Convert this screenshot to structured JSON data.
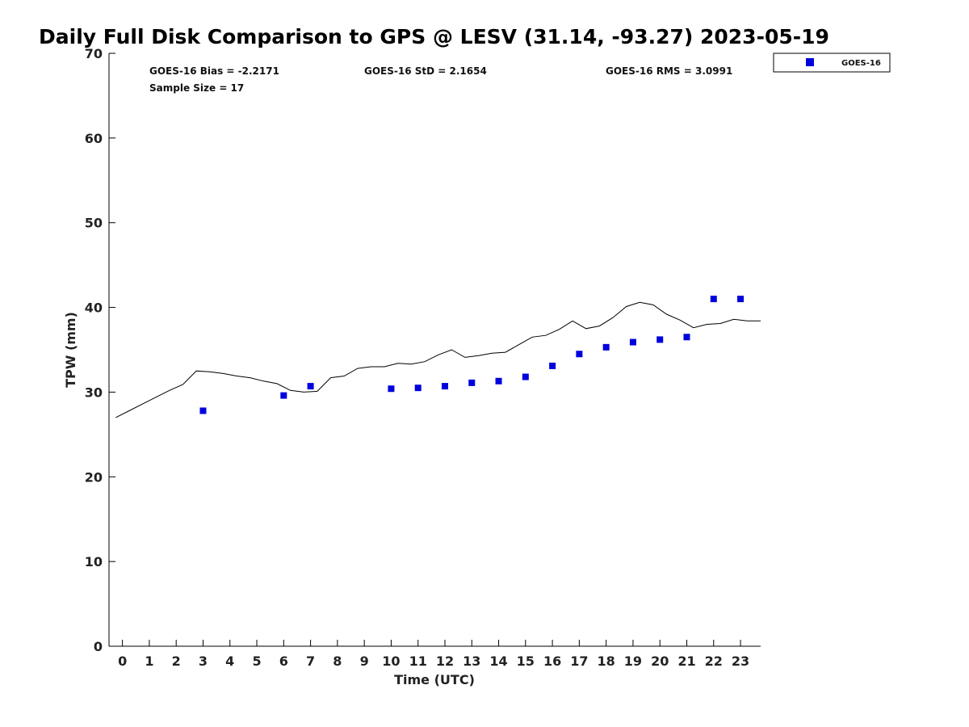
{
  "chart_data": {
    "type": "scatter",
    "title": "Daily Full Disk Comparison to GPS @ LESV (31.14, -93.27) 2023-05-19",
    "xlabel": "Time (UTC)",
    "ylabel": "TPW (mm)",
    "xlim": [
      -0.5,
      23.75
    ],
    "ylim": [
      0,
      70
    ],
    "x_ticks": [
      0,
      1,
      2,
      3,
      4,
      5,
      6,
      7,
      8,
      9,
      10,
      11,
      12,
      13,
      14,
      15,
      16,
      17,
      18,
      19,
      20,
      21,
      22,
      23
    ],
    "y_ticks": [
      0,
      10,
      20,
      30,
      40,
      50,
      60,
      70
    ],
    "grid": false,
    "legend_position": "outside-top-right",
    "stats": {
      "bias": "GOES-16 Bias = -2.2171",
      "std": "GOES-16 StD = 2.1654",
      "rms": "GOES-16 RMS = 3.0991",
      "sample": "Sample Size = 17"
    },
    "series": [
      {
        "name": "GOES-16",
        "kind": "scatter",
        "color": "#0000dd",
        "x": [
          3,
          6,
          7,
          10,
          11,
          12,
          13,
          14,
          15,
          16,
          17,
          18,
          19,
          20,
          21,
          22,
          23
        ],
        "y": [
          27.8,
          29.6,
          30.7,
          30.4,
          30.5,
          30.7,
          31.1,
          31.3,
          31.8,
          33.1,
          34.5,
          35.3,
          35.9,
          36.2,
          36.5,
          41.0,
          41.0
        ]
      },
      {
        "kind": "line",
        "color": "#000000",
        "x": [
          -0.25,
          0.25,
          0.75,
          1.25,
          1.75,
          2.25,
          2.75,
          3.25,
          3.75,
          4.25,
          4.75,
          5.25,
          5.75,
          6.25,
          6.75,
          7.25,
          7.75,
          8.25,
          8.75,
          9.25,
          9.75,
          10.25,
          10.75,
          11.25,
          11.75,
          12.25,
          12.75,
          13.25,
          13.75,
          14.25,
          14.75,
          15.25,
          15.75,
          16.25,
          16.75,
          17.25,
          17.75,
          18.25,
          18.75,
          19.25,
          19.75,
          20.25,
          20.75,
          21.25,
          21.75,
          22.25,
          22.75,
          23.25,
          23.75
        ],
        "y": [
          27.0,
          27.8,
          28.6,
          29.4,
          30.2,
          30.9,
          32.5,
          32.4,
          32.2,
          31.9,
          31.7,
          31.3,
          31.0,
          30.2,
          30.0,
          30.1,
          31.7,
          31.9,
          32.8,
          33.0,
          33.0,
          33.4,
          33.3,
          33.6,
          34.4,
          35.0,
          34.1,
          34.3,
          34.6,
          34.7,
          35.6,
          36.5,
          36.7,
          37.4,
          38.4,
          37.5,
          37.8,
          38.8,
          40.1,
          40.6,
          40.3,
          39.2,
          38.5,
          37.6,
          38.0,
          38.1,
          38.6,
          38.4,
          38.4
        ]
      }
    ]
  }
}
